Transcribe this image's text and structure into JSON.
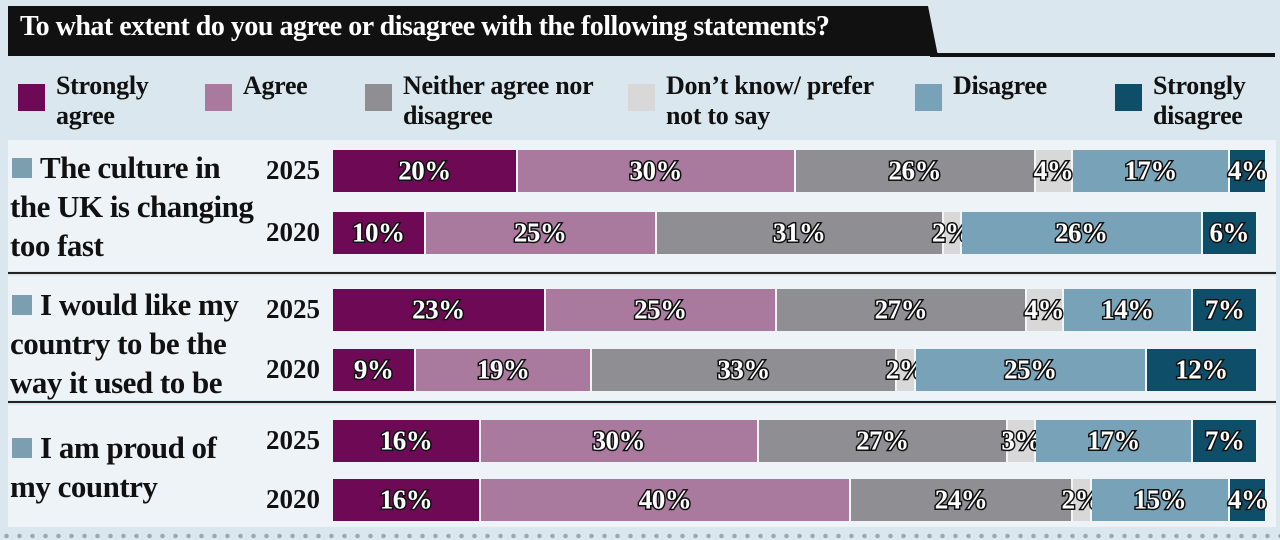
{
  "chart_data": {
    "type": "stacked-bar",
    "title": "To what extent do you agree or disagree with the following statements?",
    "groups": [
      {
        "label": "The culture in the UK is changing too fast"
      },
      {
        "label": "I would like my country to be the way it used to be"
      },
      {
        "label": "I am proud of my country"
      }
    ],
    "categories": [
      "2025",
      "2020",
      "2025",
      "2020",
      "2025",
      "2020"
    ],
    "series": [
      {
        "name": "Strongly agree",
        "color": "#6e0a55",
        "values": [
          20,
          10,
          23,
          9,
          16,
          16
        ],
        "value_labels": [
          "20%",
          "10%",
          "23%",
          "9%",
          "16%",
          "16%"
        ]
      },
      {
        "name": "Agree",
        "color": "#a97a9e",
        "values": [
          30,
          25,
          25,
          19,
          30,
          40
        ],
        "value_labels": [
          "30%",
          "25%",
          "25%",
          "19%",
          "30%",
          "40%"
        ]
      },
      {
        "name": "Neither agree nor disagree",
        "color": "#8f8f93",
        "values": [
          26,
          31,
          27,
          33,
          27,
          24
        ],
        "value_labels": [
          "26%",
          "31%",
          "27%",
          "33%",
          "27%",
          "24%"
        ]
      },
      {
        "name": "Don’t know/ prefer not to say",
        "color": "#d8d8d8",
        "values": [
          4,
          2,
          4,
          2,
          3,
          2
        ],
        "value_labels": [
          "4%",
          "2%",
          "4%",
          "2%",
          "3%",
          "2%"
        ]
      },
      {
        "name": "Disagree",
        "color": "#78a2b8",
        "values": [
          17,
          26,
          14,
          25,
          17,
          15
        ],
        "value_labels": [
          "17%",
          "26%",
          "14%",
          "25%",
          "17%",
          "15%"
        ]
      },
      {
        "name": "Strongly disagree",
        "color": "#0e4e68",
        "values": [
          4,
          6,
          7,
          12,
          7,
          4
        ],
        "value_labels": [
          "4%",
          "6%",
          "7%",
          "12%",
          "7%",
          "4%"
        ]
      }
    ]
  }
}
